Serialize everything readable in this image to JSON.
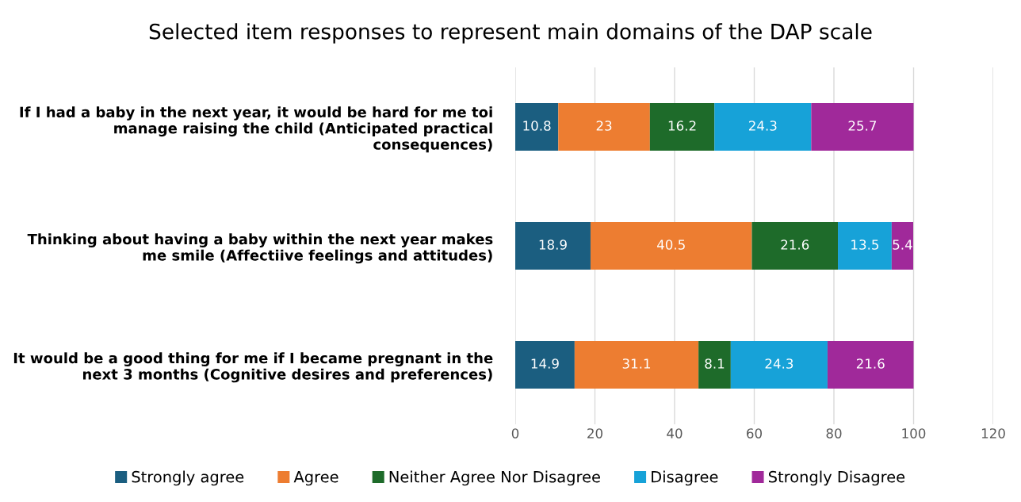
{
  "chart_data": {
    "type": "bar",
    "orientation": "horizontal",
    "stacked": true,
    "title": "Selected item responses to represent main domains of the DAP scale",
    "categories": [
      "If I had a baby in the next year, it would be hard for me toi manage raising the child (Anticipated practical consequences)",
      "Thinking about having a baby within the next year makes me smile (Affectiive feelings and attitudes)",
      "It would be a good thing for me if I became pregnant in the next 3 months (Cognitive desires and preferences)"
    ],
    "series": [
      {
        "name": "Strongly agree",
        "color": "#1b5e80",
        "values": [
          10.8,
          18.9,
          14.9
        ]
      },
      {
        "name": "Agree",
        "color": "#ed7d31",
        "values": [
          23,
          40.5,
          31.1
        ]
      },
      {
        "name": "Neither Agree Nor Disagree",
        "color": "#1e6b2a",
        "values": [
          16.2,
          21.6,
          8.1
        ]
      },
      {
        "name": "Disagree",
        "color": "#17a2d8",
        "values": [
          24.3,
          13.5,
          24.3
        ]
      },
      {
        "name": "Strongly Disagree",
        "color": "#a0299a",
        "values": [
          25.7,
          5.4,
          21.6
        ]
      }
    ],
    "xlim": [
      0,
      120
    ],
    "xticks": [
      0,
      20,
      40,
      60,
      80,
      100,
      120
    ],
    "grid": "x",
    "legend": "bottom",
    "data_labels": true
  }
}
